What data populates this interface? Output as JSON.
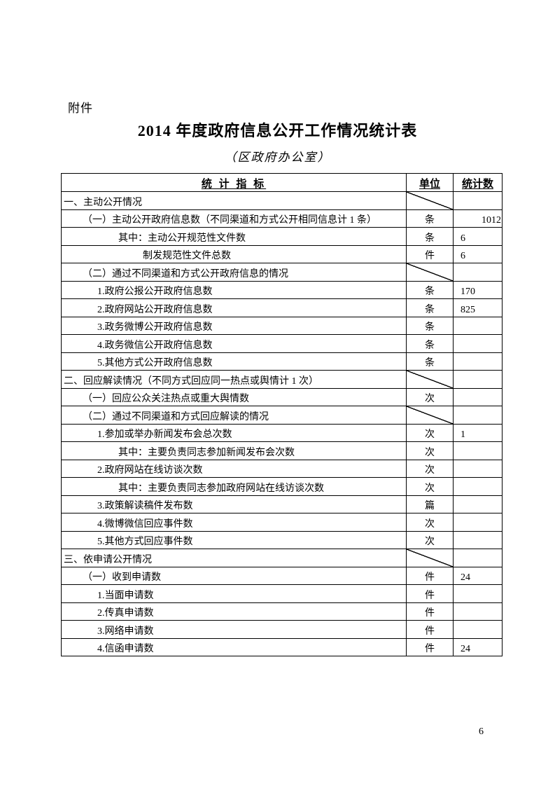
{
  "page": {
    "attachment_label": "附件",
    "title": "2014 年度政府信息公开工作情况统计表",
    "subtitle": "（区政府办公室）",
    "page_number": "6"
  },
  "colors": {
    "text": "#000000",
    "background": "#ffffff",
    "border": "#000000"
  },
  "table": {
    "header": {
      "indicator": "统 计 指 标",
      "unit": "单位",
      "count": "统计数"
    },
    "rows": [
      {
        "label": "一、主动公开情况",
        "indent": 0,
        "unit": "",
        "value": "",
        "diagonal": true
      },
      {
        "label": "（一）主动公开政府信息数（不同渠道和方式公开相同信息计 1 条）",
        "indent": 1,
        "unit": "条",
        "value": "1012",
        "value_align": "right"
      },
      {
        "label": "其中：主动公开规范性文件数",
        "indent": 3,
        "unit": "条",
        "value": "6"
      },
      {
        "label": "制发规范性文件总数",
        "indent": 4,
        "unit": "件",
        "value": "6"
      },
      {
        "label": "（二）通过不同渠道和方式公开政府信息的情况",
        "indent": 1,
        "unit": "",
        "value": "",
        "diagonal": true
      },
      {
        "label": "1.政府公报公开政府信息数",
        "indent": 2,
        "unit": "条",
        "value": "170"
      },
      {
        "label": "2.政府网站公开政府信息数",
        "indent": 2,
        "unit": "条",
        "value": "825"
      },
      {
        "label": "3.政务微博公开政府信息数",
        "indent": 2,
        "unit": "条",
        "value": ""
      },
      {
        "label": "4.政务微信公开政府信息数",
        "indent": 2,
        "unit": "条",
        "value": ""
      },
      {
        "label": "5.其他方式公开政府信息数",
        "indent": 2,
        "unit": "条",
        "value": ""
      },
      {
        "label": "二、回应解读情况（不同方式回应同一热点或舆情计 1 次）",
        "indent": 0,
        "unit": "",
        "value": "",
        "diagonal": true
      },
      {
        "label": "（一）回应公众关注热点或重大舆情数",
        "indent": 1,
        "unit": "次",
        "value": ""
      },
      {
        "label": "（二）通过不同渠道和方式回应解读的情况",
        "indent": 1,
        "unit": "",
        "value": "",
        "diagonal": true
      },
      {
        "label": "1.参加或举办新闻发布会总次数",
        "indent": 2,
        "unit": "次",
        "value": "1"
      },
      {
        "label": "其中：主要负责同志参加新闻发布会次数",
        "indent": 3,
        "unit": "次",
        "value": ""
      },
      {
        "label": "2.政府网站在线访谈次数",
        "indent": 2,
        "unit": "次",
        "value": ""
      },
      {
        "label": "其中：主要负责同志参加政府网站在线访谈次数",
        "indent": 3,
        "unit": "次",
        "value": ""
      },
      {
        "label": "3.政策解读稿件发布数",
        "indent": 2,
        "unit": "篇",
        "value": ""
      },
      {
        "label": "4.微博微信回应事件数",
        "indent": 2,
        "unit": "次",
        "value": ""
      },
      {
        "label": "5.其他方式回应事件数",
        "indent": 2,
        "unit": "次",
        "value": ""
      },
      {
        "label": "三、依申请公开情况",
        "indent": 0,
        "unit": "",
        "value": "",
        "diagonal": true
      },
      {
        "label": "（一）收到申请数",
        "indent": 1,
        "unit": "件",
        "value": "24"
      },
      {
        "label": "1.当面申请数",
        "indent": 2,
        "unit": "件",
        "value": ""
      },
      {
        "label": "2.传真申请数",
        "indent": 2,
        "unit": "件",
        "value": ""
      },
      {
        "label": "3.网络申请数",
        "indent": 2,
        "unit": "件",
        "value": ""
      },
      {
        "label": "4.信函申请数",
        "indent": 2,
        "unit": "件",
        "value": "24"
      }
    ]
  }
}
